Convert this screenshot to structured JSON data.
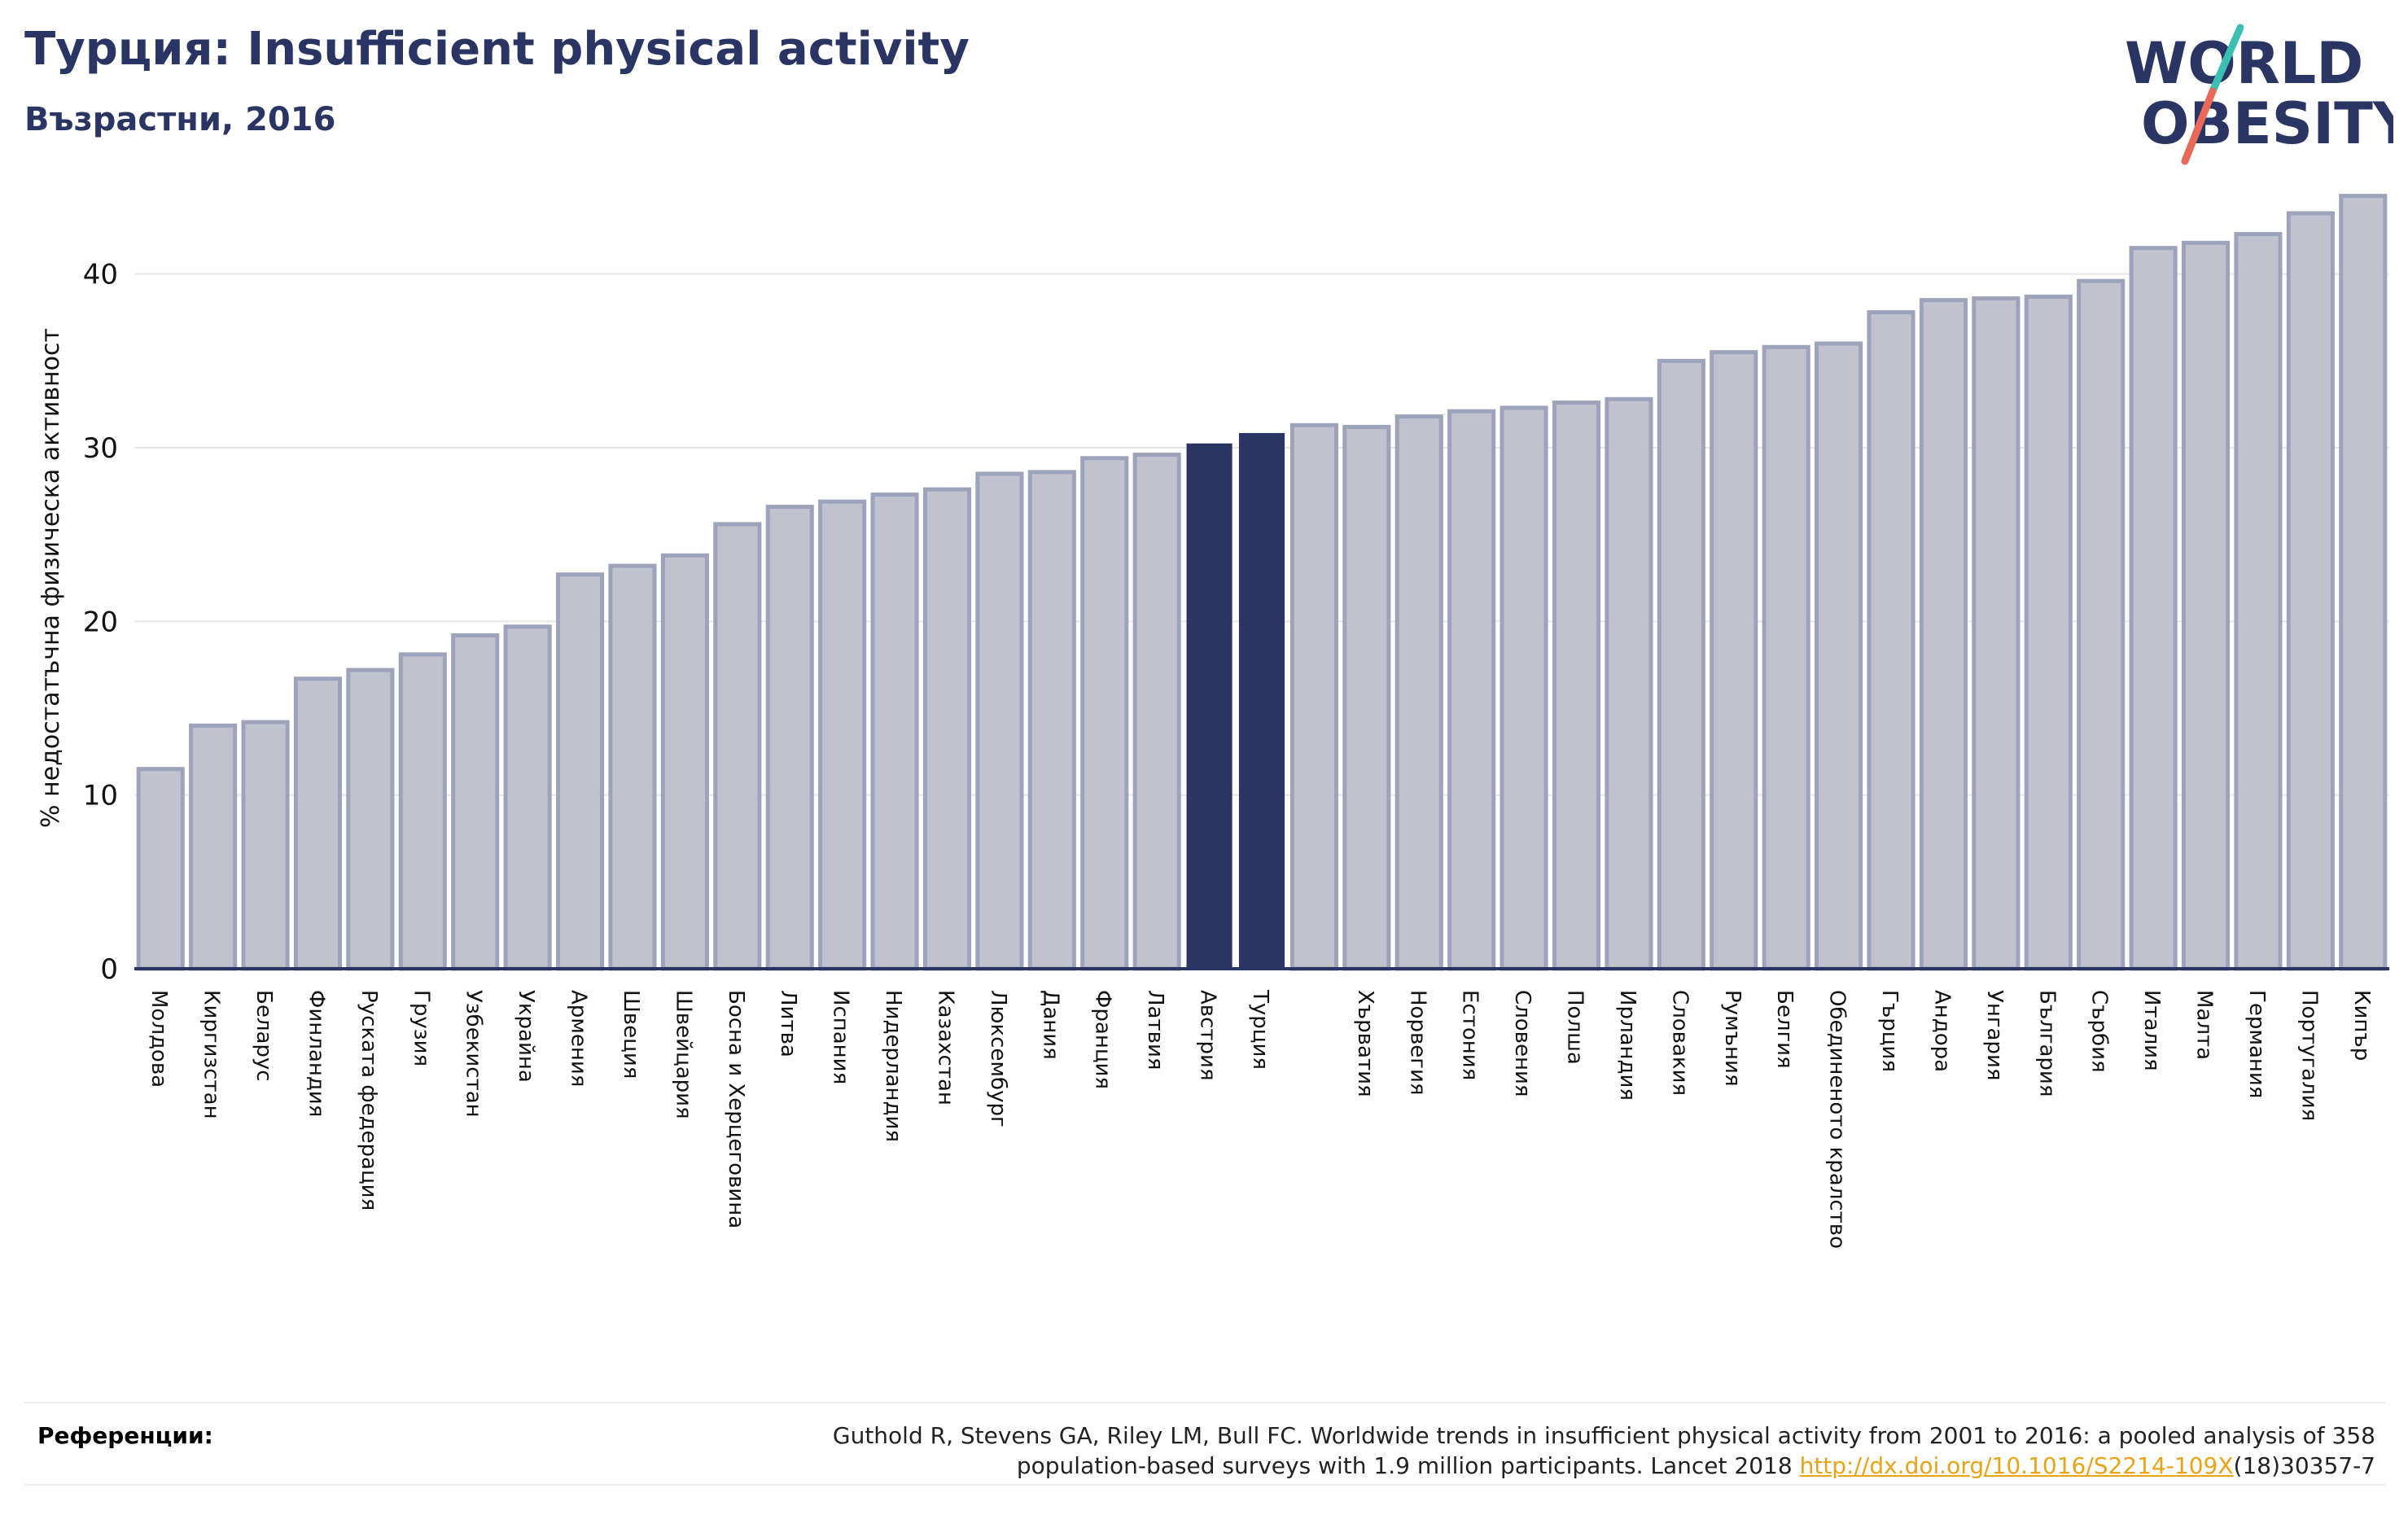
{
  "header": {
    "title": "Турция: Insufficient physical activity",
    "subtitle": "Възрастни, 2016"
  },
  "logo": {
    "line1": "WORLD",
    "line2": "OBESITY"
  },
  "colors": {
    "bar": "#c0c3ce",
    "bar_border": "#9ea3bc",
    "highlight": "#2a3564",
    "axis": "#2a3564",
    "grid": "#e6e6e6",
    "link": "#e8a317",
    "logo_teal": "#3cbfb3",
    "logo_coral": "#e8685a"
  },
  "chart_data": {
    "type": "bar",
    "ylabel": "% недостатъчна физическа активност",
    "ylim": [
      0,
      45
    ],
    "yticks": [
      0,
      10,
      20,
      30,
      40
    ],
    "grid": true,
    "highlight_indices": [
      20,
      21
    ],
    "categories": [
      "Молдова",
      "Киргизстан",
      "Беларус",
      "Финландия",
      "Руската федерация",
      "Грузия",
      "Узбекистан",
      "Украйна",
      "Армения",
      "Швеция",
      "Швейцария",
      "Босна и Херцеговина",
      "Литва",
      "Испания",
      "Нидерландия",
      "Казахстан",
      "Люксембург",
      "Дания",
      "Франция",
      "Латвия",
      "Австрия",
      "Турция",
      "",
      "Хърватия",
      "Норвегия",
      "Естония",
      "Словения",
      "Полша",
      "Ирландия",
      "Словакия",
      "Румъния",
      "Белгия",
      "Обединеното кралство",
      "Гърция",
      "Андора",
      "Унгария",
      "България",
      "Сърбия",
      "Италия",
      "Малта",
      "Германия",
      "Португалия",
      "Кипър"
    ],
    "values": [
      11.5,
      14.0,
      14.2,
      16.7,
      17.2,
      18.1,
      19.2,
      19.7,
      22.7,
      23.2,
      23.8,
      25.6,
      26.6,
      26.9,
      27.3,
      27.6,
      28.5,
      28.6,
      29.4,
      29.6,
      30.2,
      30.8,
      31.3,
      31.2,
      31.8,
      32.1,
      32.3,
      32.6,
      32.8,
      35.0,
      35.5,
      35.8,
      36.0,
      37.8,
      38.5,
      38.6,
      38.7,
      39.6,
      41.5,
      41.8,
      42.3,
      43.5,
      44.5
    ]
  },
  "references": {
    "label": "Референции:",
    "line1": "Guthold R, Stevens GA, Riley LM, Bull FC. Worldwide trends in insufficient physical activity from 2001 to 2016: a pooled analysis of 358",
    "line2_prefix": "population-based surveys with 1.9 million participants. Lancet 2018 ",
    "link_text": "http://dx.doi.org/10.1016/S2214-109X",
    "line2_suffix": "(18)30357-7"
  }
}
